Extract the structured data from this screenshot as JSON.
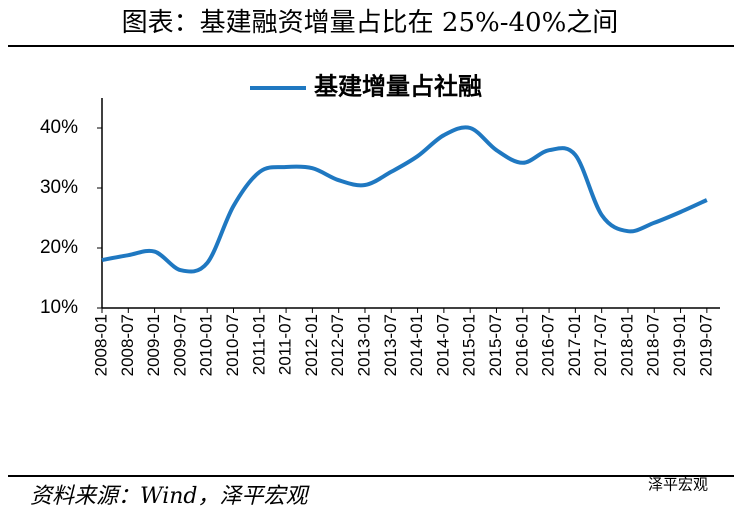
{
  "chart_data": {
    "type": "line",
    "title": "图表：基建融资增量占比在 25%-40%之间",
    "source": "资料来源：Wind，泽平宏观",
    "watermark": "泽平宏观",
    "categories": [
      "2008-01",
      "2008-07",
      "2009-01",
      "2009-07",
      "2010-01",
      "2010-07",
      "2011-01",
      "2011-07",
      "2012-01",
      "2012-07",
      "2013-01",
      "2013-07",
      "2014-01",
      "2014-07",
      "2015-01",
      "2015-07",
      "2016-01",
      "2016-07",
      "2017-01",
      "2017-07",
      "2018-01",
      "2018-07",
      "2019-01",
      "2019-07"
    ],
    "series": [
      {
        "name": "基建增量占社融",
        "color": "#1f78c1",
        "values": [
          18,
          18.8,
          19.4,
          16.3,
          17.5,
          27,
          32.7,
          33.5,
          33.3,
          31.3,
          30.5,
          32.7,
          35.3,
          38.8,
          40,
          36.3,
          34.2,
          36.3,
          35.5,
          25.5,
          22.8,
          24.2,
          26,
          28
        ]
      }
    ],
    "ylim": [
      10,
      45
    ],
    "yticks": [
      {
        "value": 10,
        "label": "10%"
      },
      {
        "value": 20,
        "label": "20%"
      },
      {
        "value": 30,
        "label": "30%"
      },
      {
        "value": 40,
        "label": "40%"
      }
    ],
    "legend": "top"
  }
}
